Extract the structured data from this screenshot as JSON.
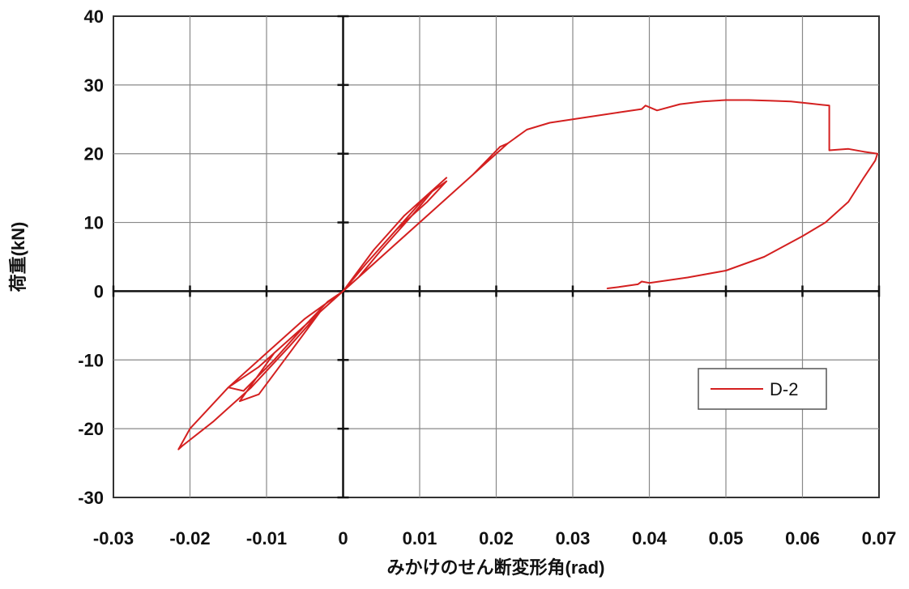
{
  "chart_data": {
    "type": "line",
    "title": "",
    "xlabel": "みかけのせん断変形角(rad)",
    "ylabel": "荷重(kN)",
    "xlim": [
      -0.03,
      0.07
    ],
    "ylim": [
      -30,
      40
    ],
    "x_tick_labels": [
      "-0.03",
      "-0.02",
      "-0.01",
      "0",
      "0.01",
      "0.02",
      "0.03",
      "0.04",
      "0.05",
      "0.06",
      "0.07"
    ],
    "y_tick_labels": [
      "40",
      "30",
      "20",
      "10",
      "0",
      "-10",
      "-20",
      "-30"
    ],
    "x_ticks": [
      -0.03,
      -0.02,
      -0.01,
      0,
      0.01,
      0.02,
      0.03,
      0.04,
      0.05,
      0.06,
      0.07
    ],
    "y_ticks": [
      40,
      30,
      20,
      10,
      0,
      -10,
      -20,
      -30
    ],
    "grid": true,
    "legend_position": "lower-right",
    "series": [
      {
        "name": "D-2",
        "color": "#d42020",
        "x": [
          0,
          0.004,
          0.008,
          0.011,
          0.0135,
          0.012,
          0.009,
          0.005,
          0.002,
          0,
          -0.003,
          -0.007,
          -0.011,
          -0.015,
          -0.013,
          -0.009,
          -0.005,
          -0.002,
          0,
          0.003,
          0.007,
          0.011,
          0.0135,
          0.011,
          0.007,
          0.003,
          0,
          -0.004,
          -0.009,
          -0.0135,
          -0.011,
          -0.007,
          -0.003,
          0,
          0.005,
          0.01,
          0.015,
          0.019,
          0.0215,
          0.0205,
          0.017,
          0.012,
          0.007,
          0.003,
          0,
          -0.005,
          -0.01,
          -0.015,
          -0.02,
          -0.0215,
          -0.021,
          -0.017,
          -0.012,
          -0.007,
          -0.003,
          0,
          0.005,
          0.01,
          0.015,
          0.019,
          0.0215,
          0.024,
          0.027,
          0.03,
          0.033,
          0.036,
          0.039,
          0.0395,
          0.041,
          0.044,
          0.047,
          0.05,
          0.053,
          0.056,
          0.0585,
          0.061,
          0.0635,
          0.0635,
          0.066,
          0.068,
          0.0698,
          0.0695,
          0.068,
          0.066,
          0.063,
          0.06,
          0.055,
          0.05,
          0.045,
          0.04,
          0.039,
          0.0385,
          0.036,
          0.0345
        ],
        "values": [
          0,
          6,
          11,
          14,
          16.5,
          15,
          11,
          6,
          2,
          0,
          -3,
          -7,
          -11,
          -14,
          -14.5,
          -10,
          -5,
          -1.5,
          0,
          4,
          9,
          13,
          16,
          14,
          9,
          4,
          0,
          -4,
          -9,
          -16,
          -15,
          -9,
          -3,
          0,
          5,
          10,
          15,
          19,
          21.5,
          21,
          17,
          12,
          7,
          3,
          0,
          -4,
          -9,
          -14,
          -20,
          -23,
          -22.5,
          -19,
          -14,
          -8,
          -3,
          0,
          5,
          10,
          15,
          19,
          21.5,
          23.5,
          24.5,
          25,
          25.5,
          26,
          26.5,
          27,
          26.3,
          27.2,
          27.6,
          27.8,
          27.8,
          27.7,
          27.6,
          27.3,
          27,
          20.5,
          20.7,
          20.3,
          20,
          19,
          16.5,
          13,
          10,
          8,
          5,
          3,
          2,
          1.2,
          1.4,
          1.0,
          0.6,
          0.4
        ]
      }
    ]
  }
}
